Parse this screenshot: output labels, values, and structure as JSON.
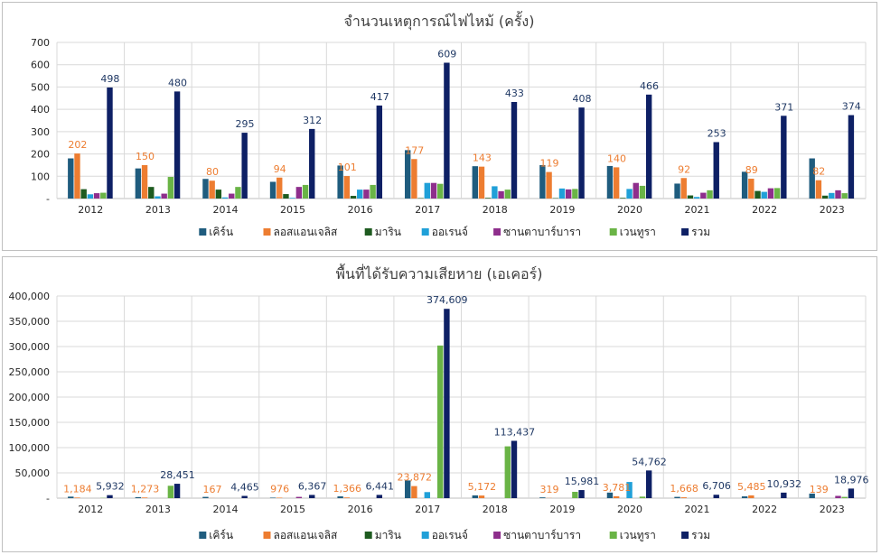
{
  "colors": {
    "series": [
      "#1F5C7E",
      "#ED7D31",
      "#1E5B20",
      "#20A0D8",
      "#8E2E8C",
      "#6AB446",
      "#0E2065"
    ],
    "gridline": "#d9d9d9",
    "axis": "#bfbfbf",
    "label_orange": "#ED7D31",
    "label_navy": "#1F3864"
  },
  "chart_data": [
    {
      "type": "bar",
      "title": "จำนวนเหตุการณ์ไฟไหม้ (ครั้ง)",
      "categories": [
        "2012",
        "2013",
        "2014",
        "2015",
        "2016",
        "2017",
        "2018",
        "2019",
        "2020",
        "2021",
        "2022",
        "2023"
      ],
      "ylim": [
        0,
        700
      ],
      "yticks": [
        "-",
        "100",
        "200",
        "300",
        "400",
        "500",
        "600",
        "700"
      ],
      "grid": true,
      "legend": "bottom",
      "labeled_series": [
        "ลอสแอนเจลิส",
        "รวม"
      ],
      "series": [
        {
          "name": "เคิร์น",
          "values": [
            180,
            135,
            88,
            75,
            148,
            217,
            145,
            150,
            146,
            67,
            120,
            180
          ]
        },
        {
          "name": "ลอสแอนเจลิส",
          "values": [
            202,
            150,
            80,
            94,
            101,
            177,
            143,
            119,
            140,
            92,
            89,
            82
          ]
        },
        {
          "name": "มาริน",
          "values": [
            42,
            52,
            40,
            20,
            12,
            2,
            3,
            2,
            3,
            14,
            34,
            13
          ]
        },
        {
          "name": "ออเรนจ์",
          "values": [
            19,
            10,
            5,
            3,
            40,
            70,
            55,
            45,
            43,
            7,
            30,
            25
          ]
        },
        {
          "name": "ซานตาบาร์บารา",
          "values": [
            24,
            22,
            22,
            52,
            40,
            70,
            33,
            41,
            70,
            26,
            46,
            37
          ]
        },
        {
          "name": "เวนทูรา",
          "values": [
            26,
            97,
            52,
            61,
            61,
            66,
            40,
            43,
            57,
            37,
            47,
            24
          ]
        },
        {
          "name": "รวม",
          "values": [
            498,
            480,
            295,
            312,
            417,
            609,
            433,
            408,
            466,
            253,
            371,
            374
          ]
        }
      ],
      "data_labels": {
        "ลอสแอนเจลิส": [
          "202",
          "150",
          "80",
          "94",
          "101",
          "177",
          "143",
          "119",
          "140",
          "92",
          "89",
          "82"
        ],
        "รวม": [
          "498",
          "480",
          "295",
          "312",
          "417",
          "609",
          "433",
          "408",
          "466",
          "253",
          "371",
          "374"
        ]
      }
    },
    {
      "type": "bar",
      "title": "พื้นที่ได้รับความเสียหาย (เอเคอร์)",
      "categories": [
        "2012",
        "2013",
        "2014",
        "2015",
        "2016",
        "2017",
        "2018",
        "2019",
        "2020",
        "2021",
        "2022",
        "2023"
      ],
      "ylim": [
        0,
        400000
      ],
      "yticks": [
        "-",
        "50,000",
        "100,000",
        "150,000",
        "200,000",
        "250,000",
        "300,000",
        "350,000",
        "400,000"
      ],
      "grid": true,
      "legend": "bottom",
      "labeled_series": [
        "ลอสแอนเจลิส",
        "รวม"
      ],
      "series": [
        {
          "name": "เคิร์น",
          "values": [
            3000,
            2000,
            2500,
            1000,
            3500,
            35000,
            5500,
            1500,
            11000,
            2500,
            3500,
            9000
          ]
        },
        {
          "name": "ลอสแอนเจลิส",
          "values": [
            1184,
            1273,
            167,
            976,
            1366,
            23872,
            5172,
            319,
            3781,
            1668,
            5485,
            139
          ]
        },
        {
          "name": "มาริน",
          "values": [
            0,
            0,
            0,
            0,
            0,
            0,
            0,
            0,
            0,
            0,
            0,
            0
          ]
        },
        {
          "name": "ออเรนจ์",
          "values": [
            0,
            0,
            0,
            0,
            0,
            12000,
            0,
            0,
            32000,
            0,
            0,
            0
          ]
        },
        {
          "name": "ซานตาบาร์บารา",
          "values": [
            0,
            0,
            0,
            2500,
            0,
            0,
            0,
            0,
            0,
            0,
            0,
            4500
          ]
        },
        {
          "name": "เวนทูรา",
          "values": [
            500,
            24500,
            0,
            0,
            0,
            302000,
            102500,
            12500,
            3000,
            0,
            0,
            2500
          ]
        },
        {
          "name": "รวม",
          "values": [
            5932,
            28451,
            4465,
            6367,
            6441,
            374609,
            113437,
            15981,
            54762,
            6706,
            10932,
            18976
          ]
        }
      ],
      "data_labels": {
        "ลอสแอนเจลิส": [
          "1,184",
          "1,273",
          "167",
          "976",
          "1,366",
          "23,872",
          "5,172",
          "319",
          "3,781",
          "1,668",
          "5,485",
          "139"
        ],
        "รวม": [
          "5,932",
          "28,451",
          "4,465",
          "6,367",
          "6,441",
          "374,609",
          "113,437",
          "15,981",
          "54,762",
          "6,706",
          "10,932",
          "18,976"
        ]
      }
    }
  ]
}
